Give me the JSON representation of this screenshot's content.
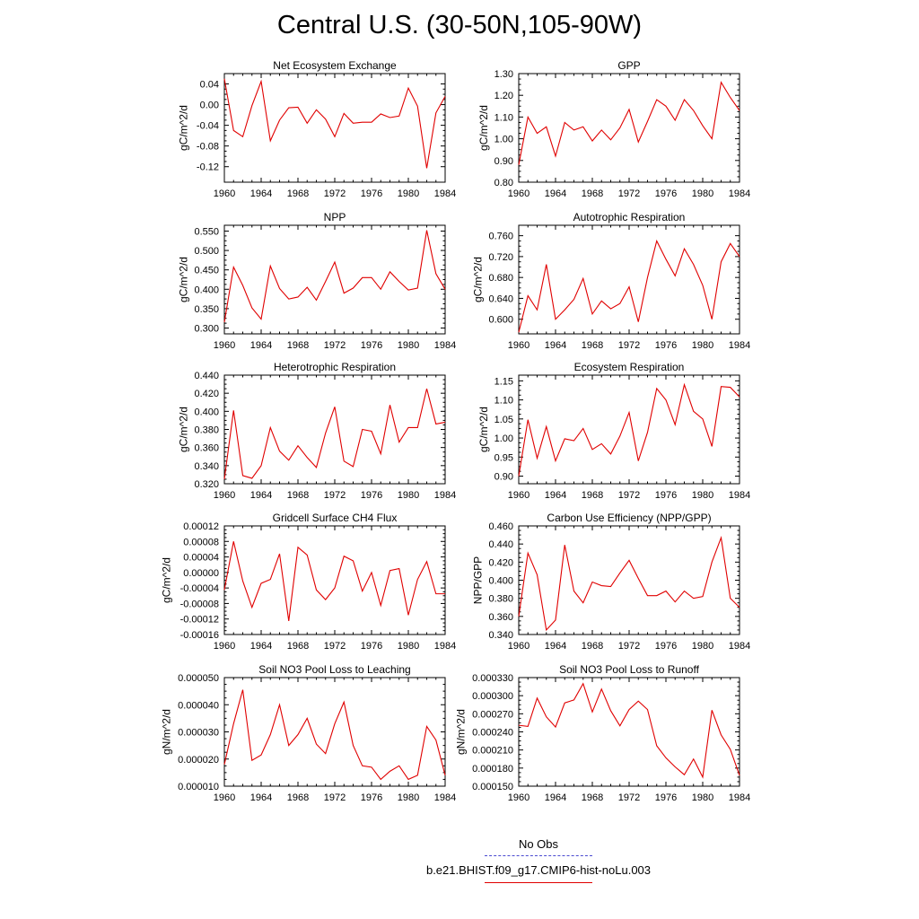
{
  "title": "Central U.S. (30-50N,105-90W)",
  "legend": {
    "obs_label": "No Obs",
    "obs_color": "#4a4ad0",
    "case_label": "b.e21.BHIST.f09_g17.CMIP6-hist-noLu.003",
    "case_color": "#e00000"
  },
  "chart_data": [
    {
      "type": "line",
      "title": "Net Ecosystem Exchange",
      "ylabel": "gC/m^2/d",
      "xlim": [
        1960,
        1984
      ],
      "xticks": [
        "1960",
        "1964",
        "1968",
        "1972",
        "1976",
        "1980",
        "1984"
      ],
      "ylim": [
        -0.15,
        0.06
      ],
      "yticks": [
        "0.04",
        "0.00",
        "-0.04",
        "-0.08",
        "-0.12"
      ],
      "ytick_values": [
        0.04,
        0.0,
        -0.04,
        -0.08,
        -0.12
      ],
      "x": [
        1960,
        1961,
        1962,
        1963,
        1964,
        1965,
        1966,
        1967,
        1968,
        1969,
        1970,
        1971,
        1972,
        1973,
        1974,
        1975,
        1976,
        1977,
        1978,
        1979,
        1980,
        1981,
        1982,
        1983,
        1984
      ],
      "series": [
        {
          "values": [
            0.05,
            -0.05,
            -0.062,
            -0.002,
            0.045,
            -0.07,
            -0.03,
            -0.006,
            -0.005,
            -0.036,
            -0.01,
            -0.028,
            -0.062,
            -0.017,
            -0.036,
            -0.034,
            -0.034,
            -0.018,
            -0.025,
            -0.022,
            0.032,
            -0.003,
            -0.123,
            -0.016,
            0.016
          ]
        }
      ]
    },
    {
      "type": "line",
      "title": "GPP",
      "ylabel": "gC/m^2/d",
      "xlim": [
        1960,
        1984
      ],
      "xticks": [
        "1960",
        "1964",
        "1968",
        "1972",
        "1976",
        "1980",
        "1984"
      ],
      "ylim": [
        0.8,
        1.3
      ],
      "yticks": [
        "0.80",
        "0.90",
        "1.00",
        "1.10",
        "1.20",
        "1.30"
      ],
      "ytick_values": [
        0.8,
        0.9,
        1.0,
        1.1,
        1.2,
        1.3
      ],
      "x": [
        1960,
        1961,
        1962,
        1963,
        1964,
        1965,
        1966,
        1967,
        1968,
        1969,
        1970,
        1971,
        1972,
        1973,
        1974,
        1975,
        1976,
        1977,
        1978,
        1979,
        1980,
        1981,
        1982,
        1983,
        1984
      ],
      "series": [
        {
          "values": [
            0.88,
            1.1,
            1.025,
            1.055,
            0.92,
            1.075,
            1.04,
            1.055,
            0.99,
            1.04,
            0.995,
            1.05,
            1.135,
            0.985,
            1.08,
            1.18,
            1.15,
            1.085,
            1.18,
            1.13,
            1.06,
            1.0,
            1.26,
            1.19,
            1.13
          ]
        }
      ]
    },
    {
      "type": "line",
      "title": "NPP",
      "ylabel": "gC/m^2/d",
      "xlim": [
        1960,
        1984
      ],
      "xticks": [
        "1960",
        "1964",
        "1968",
        "1972",
        "1976",
        "1980",
        "1984"
      ],
      "ylim": [
        0.285,
        0.565
      ],
      "yticks": [
        "0.550",
        "0.500",
        "0.450",
        "0.400",
        "0.350",
        "0.300"
      ],
      "ytick_values": [
        0.55,
        0.5,
        0.45,
        0.4,
        0.35,
        0.3
      ],
      "x": [
        1960,
        1961,
        1962,
        1963,
        1964,
        1965,
        1966,
        1967,
        1968,
        1969,
        1970,
        1971,
        1972,
        1973,
        1974,
        1975,
        1976,
        1977,
        1978,
        1979,
        1980,
        1981,
        1982,
        1983,
        1984
      ],
      "series": [
        {
          "values": [
            0.315,
            0.457,
            0.41,
            0.352,
            0.323,
            0.46,
            0.402,
            0.375,
            0.38,
            0.405,
            0.372,
            0.42,
            0.47,
            0.39,
            0.403,
            0.43,
            0.43,
            0.4,
            0.445,
            0.42,
            0.398,
            0.403,
            0.552,
            0.44,
            0.4
          ]
        }
      ]
    },
    {
      "type": "line",
      "title": "Autotrophic Respiration",
      "ylabel": "gC/m^2/d",
      "xlim": [
        1960,
        1984
      ],
      "xticks": [
        "1960",
        "1964",
        "1968",
        "1972",
        "1976",
        "1980",
        "1984"
      ],
      "ylim": [
        0.572,
        0.78
      ],
      "yticks": [
        "0.760",
        "0.720",
        "0.680",
        "0.640",
        "0.600"
      ],
      "ytick_values": [
        0.76,
        0.72,
        0.68,
        0.64,
        0.6
      ],
      "x": [
        1960,
        1961,
        1962,
        1963,
        1964,
        1965,
        1966,
        1967,
        1968,
        1969,
        1970,
        1971,
        1972,
        1973,
        1974,
        1975,
        1976,
        1977,
        1978,
        1979,
        1980,
        1981,
        1982,
        1983,
        1984
      ],
      "series": [
        {
          "values": [
            0.575,
            0.645,
            0.618,
            0.705,
            0.6,
            0.618,
            0.638,
            0.678,
            0.61,
            0.635,
            0.62,
            0.63,
            0.662,
            0.595,
            0.68,
            0.75,
            0.715,
            0.683,
            0.735,
            0.705,
            0.665,
            0.6,
            0.71,
            0.745,
            0.72
          ]
        }
      ]
    },
    {
      "type": "line",
      "title": "Heterotrophic Respiration",
      "ylabel": "gC/m^2/d",
      "xlim": [
        1960,
        1984
      ],
      "xticks": [
        "1960",
        "1964",
        "1968",
        "1972",
        "1976",
        "1980",
        "1984"
      ],
      "ylim": [
        0.32,
        0.44
      ],
      "yticks": [
        "0.440",
        "0.420",
        "0.400",
        "0.380",
        "0.360",
        "0.340",
        "0.320"
      ],
      "ytick_values": [
        0.44,
        0.42,
        0.4,
        0.38,
        0.36,
        0.34,
        0.32
      ],
      "x": [
        1960,
        1961,
        1962,
        1963,
        1964,
        1965,
        1966,
        1967,
        1968,
        1969,
        1970,
        1971,
        1972,
        1973,
        1974,
        1975,
        1976,
        1977,
        1978,
        1979,
        1980,
        1981,
        1982,
        1983,
        1984
      ],
      "series": [
        {
          "values": [
            0.325,
            0.401,
            0.329,
            0.326,
            0.34,
            0.382,
            0.356,
            0.346,
            0.362,
            0.349,
            0.338,
            0.376,
            0.405,
            0.345,
            0.339,
            0.38,
            0.378,
            0.353,
            0.407,
            0.366,
            0.382,
            0.382,
            0.425,
            0.386,
            0.388
          ]
        }
      ]
    },
    {
      "type": "line",
      "title": "Ecosystem Respiration",
      "ylabel": "gC/m^2/d",
      "xlim": [
        1960,
        1984
      ],
      "xticks": [
        "1960",
        "1964",
        "1968",
        "1972",
        "1976",
        "1980",
        "1984"
      ],
      "ylim": [
        0.88,
        1.165
      ],
      "yticks": [
        "1.15",
        "1.10",
        "1.05",
        "1.00",
        "0.95",
        "0.90"
      ],
      "ytick_values": [
        1.15,
        1.1,
        1.05,
        1.0,
        0.95,
        0.9
      ],
      "x": [
        1960,
        1961,
        1962,
        1963,
        1964,
        1965,
        1966,
        1967,
        1968,
        1969,
        1970,
        1971,
        1972,
        1973,
        1974,
        1975,
        1976,
        1977,
        1978,
        1979,
        1980,
        1981,
        1982,
        1983,
        1984
      ],
      "series": [
        {
          "values": [
            0.9,
            1.048,
            0.947,
            1.03,
            0.94,
            0.998,
            0.993,
            1.025,
            0.97,
            0.985,
            0.958,
            1.005,
            1.067,
            0.94,
            1.015,
            1.13,
            1.1,
            1.035,
            1.14,
            1.07,
            1.05,
            0.978,
            1.135,
            1.133,
            1.108
          ]
        }
      ]
    },
    {
      "type": "line",
      "title": "Gridcell Surface CH4 Flux",
      "ylabel": "gC/m^2/d",
      "xlim": [
        1960,
        1984
      ],
      "xticks": [
        "1960",
        "1964",
        "1968",
        "1972",
        "1976",
        "1980",
        "1984"
      ],
      "ylim": [
        -0.00016,
        0.00012
      ],
      "yticks": [
        "0.00012",
        "0.00008",
        "0.00004",
        "0.00000",
        "-0.00004",
        "-0.00008",
        "-0.00012",
        "-0.00016"
      ],
      "ytick_values": [
        0.00012,
        8e-05,
        4e-05,
        0.0,
        -4e-05,
        -8e-05,
        -0.00012,
        -0.00016
      ],
      "x": [
        1960,
        1961,
        1962,
        1963,
        1964,
        1965,
        1966,
        1967,
        1968,
        1969,
        1970,
        1971,
        1972,
        1973,
        1974,
        1975,
        1976,
        1977,
        1978,
        1979,
        1980,
        1981,
        1982,
        1983,
        1984
      ],
      "series": [
        {
          "values": [
            -4.5e-05,
            8e-05,
            -2.2e-05,
            -9e-05,
            -2.8e-05,
            -1.8e-05,
            4.8e-05,
            -0.000125,
            6.5e-05,
            4.5e-05,
            -4.5e-05,
            -7e-05,
            -4e-05,
            4.2e-05,
            3e-05,
            -4.8e-05,
            0.0,
            -8.5e-05,
            5e-06,
            1e-05,
            -0.00011,
            -1.8e-05,
            2.8e-05,
            -5.5e-05,
            -5.5e-05
          ]
        }
      ]
    },
    {
      "type": "line",
      "title": "Carbon Use Efficiency (NPP/GPP)",
      "ylabel": "NPP/GPP",
      "xlim": [
        1960,
        1984
      ],
      "xticks": [
        "1960",
        "1964",
        "1968",
        "1972",
        "1976",
        "1980",
        "1984"
      ],
      "ylim": [
        0.34,
        0.46
      ],
      "yticks": [
        "0.460",
        "0.440",
        "0.420",
        "0.400",
        "0.380",
        "0.360",
        "0.340"
      ],
      "ytick_values": [
        0.46,
        0.44,
        0.42,
        0.4,
        0.38,
        0.36,
        0.34
      ],
      "x": [
        1960,
        1961,
        1962,
        1963,
        1964,
        1965,
        1966,
        1967,
        1968,
        1969,
        1970,
        1971,
        1972,
        1973,
        1974,
        1975,
        1976,
        1977,
        1978,
        1979,
        1980,
        1981,
        1982,
        1983,
        1984
      ],
      "series": [
        {
          "values": [
            0.36,
            0.43,
            0.406,
            0.345,
            0.356,
            0.439,
            0.388,
            0.375,
            0.398,
            0.394,
            0.393,
            0.408,
            0.422,
            0.402,
            0.383,
            0.383,
            0.388,
            0.376,
            0.388,
            0.38,
            0.382,
            0.42,
            0.447,
            0.38,
            0.37
          ]
        }
      ]
    },
    {
      "type": "line",
      "title": "Soil NO3 Pool Loss to Leaching",
      "ylabel": "gN/m^2/d",
      "xlim": [
        1960,
        1984
      ],
      "xticks": [
        "1960",
        "1964",
        "1968",
        "1972",
        "1976",
        "1980",
        "1984"
      ],
      "ylim": [
        1e-05,
        5e-05
      ],
      "yticks": [
        "0.000050",
        "0.000040",
        "0.000030",
        "0.000020",
        "0.000010"
      ],
      "ytick_values": [
        5e-05,
        4e-05,
        3e-05,
        2e-05,
        1e-05
      ],
      "x": [
        1960,
        1961,
        1962,
        1963,
        1964,
        1965,
        1966,
        1967,
        1968,
        1969,
        1970,
        1971,
        1972,
        1973,
        1974,
        1975,
        1976,
        1977,
        1978,
        1979,
        1980,
        1981,
        1982,
        1983,
        1984
      ],
      "series": [
        {
          "values": [
            1.8e-05,
            3.3e-05,
            4.55e-05,
            1.95e-05,
            2.15e-05,
            2.9e-05,
            4e-05,
            2.5e-05,
            2.9e-05,
            3.5e-05,
            2.55e-05,
            2.2e-05,
            3.3e-05,
            4.1e-05,
            2.5e-05,
            1.75e-05,
            1.7e-05,
            1.25e-05,
            1.55e-05,
            1.75e-05,
            1.25e-05,
            1.4e-05,
            3.2e-05,
            2.7e-05,
            1.4e-05
          ]
        }
      ]
    },
    {
      "type": "line",
      "title": "Soil NO3 Pool Loss to Runoff",
      "ylabel": "gN/m^2/d",
      "xlim": [
        1960,
        1984
      ],
      "xticks": [
        "1960",
        "1964",
        "1968",
        "1972",
        "1976",
        "1980",
        "1984"
      ],
      "ylim": [
        0.00015,
        0.00033
      ],
      "yticks": [
        "0.000330",
        "0.000300",
        "0.000270",
        "0.000240",
        "0.000210",
        "0.000180",
        "0.000150"
      ],
      "ytick_values": [
        0.00033,
        0.0003,
        0.00027,
        0.00024,
        0.00021,
        0.00018,
        0.00015
      ],
      "x": [
        1960,
        1961,
        1962,
        1963,
        1964,
        1965,
        1966,
        1967,
        1968,
        1969,
        1970,
        1971,
        1972,
        1973,
        1974,
        1975,
        1976,
        1977,
        1978,
        1979,
        1980,
        1981,
        1982,
        1983,
        1984
      ],
      "series": [
        {
          "values": [
            0.000251,
            0.000249,
            0.000296,
            0.000265,
            0.000248,
            0.000288,
            0.000293,
            0.00032,
            0.000273,
            0.000311,
            0.000275,
            0.00025,
            0.000277,
            0.000291,
            0.000277,
            0.000217,
            0.000197,
            0.000182,
            0.000169,
            0.000195,
            0.000165,
            0.000276,
            0.000235,
            0.000211,
            0.000168
          ]
        }
      ]
    }
  ]
}
